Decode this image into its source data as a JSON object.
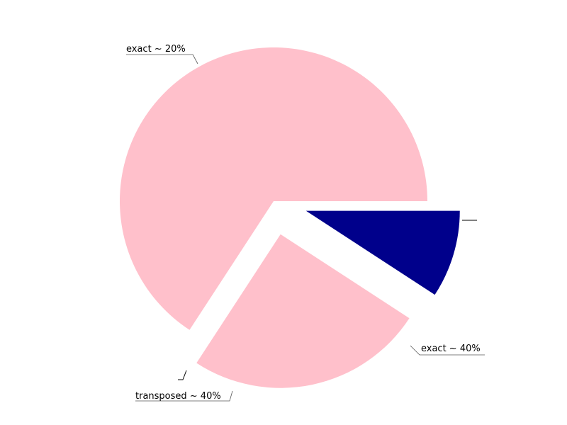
{
  "chart_data": {
    "type": "pie",
    "title": "",
    "slices": [
      {
        "label": "exact ~ 20%",
        "value": 65.8,
        "color": "#ffc0cb",
        "exploded": false
      },
      {
        "label": "exact ~ 40%",
        "value": 25.0,
        "color": "#ffc0cb",
        "exploded": true
      },
      {
        "label": "transposed ~ 40%",
        "value": 9.2,
        "color": "#00008b",
        "exploded": true
      }
    ],
    "start_angle_deg": 0,
    "direction": "counterclockwise",
    "legend": "none",
    "grid": false
  }
}
